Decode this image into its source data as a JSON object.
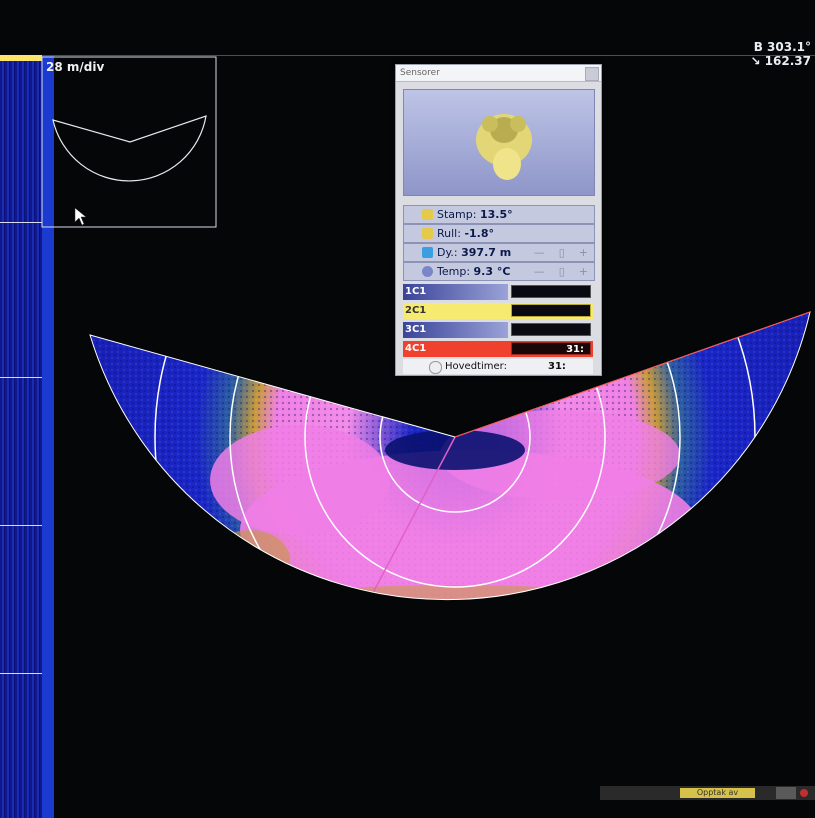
{
  "readout": {
    "bearing": "B 303.1°",
    "range": "↘ 162.37"
  },
  "scale_label": "28 m/div",
  "sensor_panel": {
    "title": "Sensorer",
    "rows": [
      {
        "label": "Stamp:",
        "value": "13.5°",
        "icon": "pitch-icon"
      },
      {
        "label": "Rull:",
        "value": "-1.8°",
        "icon": "roll-icon"
      },
      {
        "label": "Dy.:",
        "value": "397.7 m",
        "icon": "depth-icon"
      },
      {
        "label": "Temp:",
        "value": "9.3 °C",
        "icon": "temperature-icon"
      }
    ],
    "channels": [
      {
        "label": "1C1",
        "value": "",
        "color": "#5a63b8"
      },
      {
        "label": "2C1",
        "value": "",
        "color": "#f6ea70"
      },
      {
        "label": "3C1",
        "value": "",
        "color": "#5a63b8"
      },
      {
        "label": "4C1",
        "value": "31:",
        "color": "#f0402e"
      }
    ],
    "hours_label": "Hovedtimer:",
    "hours_value": "31:"
  },
  "bottom_bar": {
    "button_label": "Opptak av"
  },
  "colors": {
    "background": "#050608",
    "echo_low": "#1a26c8",
    "echo_mid": "#c89a3a",
    "echo_high": "#f07ee6",
    "range_ring": "#ffffff"
  }
}
